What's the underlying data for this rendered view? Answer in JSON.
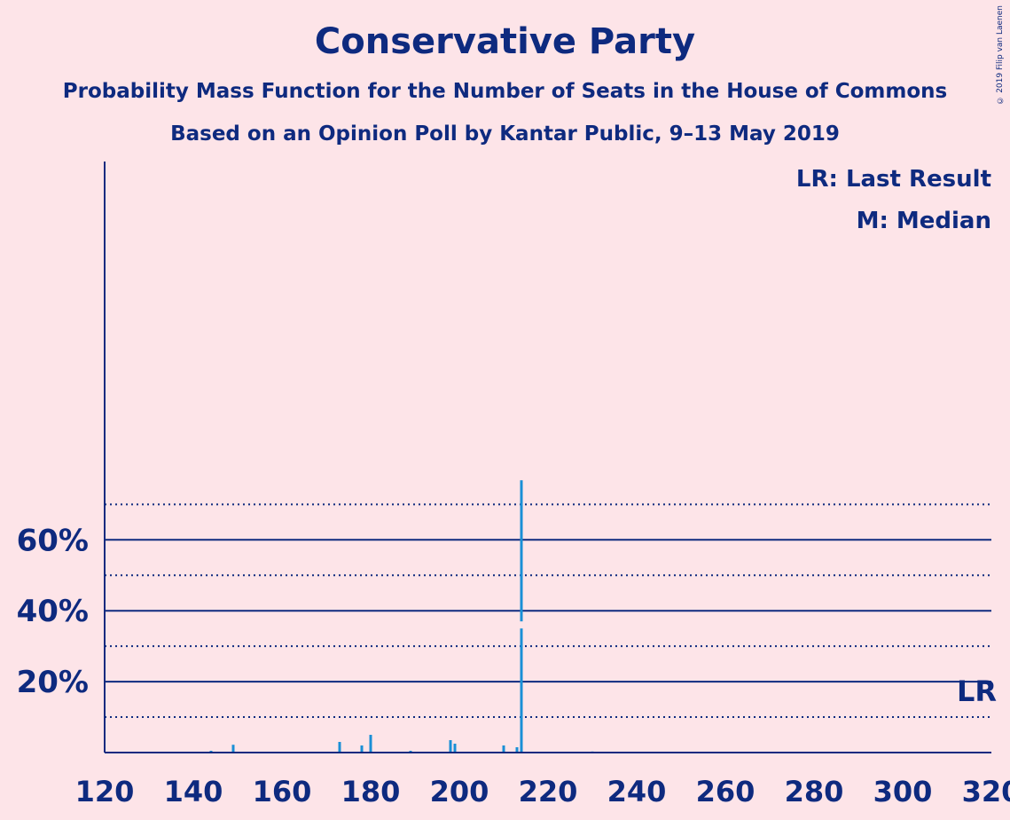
{
  "title": "Conservative Party",
  "subtitle": "Probability Mass Function for the Number of Seats in the House of Commons",
  "subtitle2": "Based on an Opinion Poll by Kantar Public, 9–13 May 2019",
  "copyright": "© 2019 Filip van Laenen",
  "colors": {
    "background": "#fde4e8",
    "text": "#0e2a7f",
    "bar": "#1a8fd6"
  },
  "chart_data": {
    "type": "bar",
    "xlim": [
      120,
      320
    ],
    "ylim": [
      0,
      0.83
    ],
    "x_ticks": [
      120,
      140,
      160,
      180,
      200,
      220,
      240,
      260,
      280,
      300,
      320
    ],
    "y_ticks_labeled": [
      0.2,
      0.4,
      0.6
    ],
    "y_tick_labels": [
      "20%",
      "40%",
      "60%"
    ],
    "y_gridlines_solid": [
      0.2,
      0.4,
      0.6
    ],
    "y_gridlines_dotted": [
      0.1,
      0.3,
      0.5,
      0.7
    ],
    "legend": [
      "LR: Last Result",
      "M: Median"
    ],
    "last_result_label": "LR",
    "median_seats": 214,
    "last_result_seats": 317,
    "x": [
      137,
      144,
      149,
      173,
      178,
      180,
      189,
      198,
      199,
      210,
      213,
      214,
      217,
      230
    ],
    "values": [
      0.002,
      0.005,
      0.022,
      0.03,
      0.02,
      0.05,
      0.005,
      0.035,
      0.025,
      0.02,
      0.015,
      0.768,
      0.002,
      0.003
    ]
  }
}
